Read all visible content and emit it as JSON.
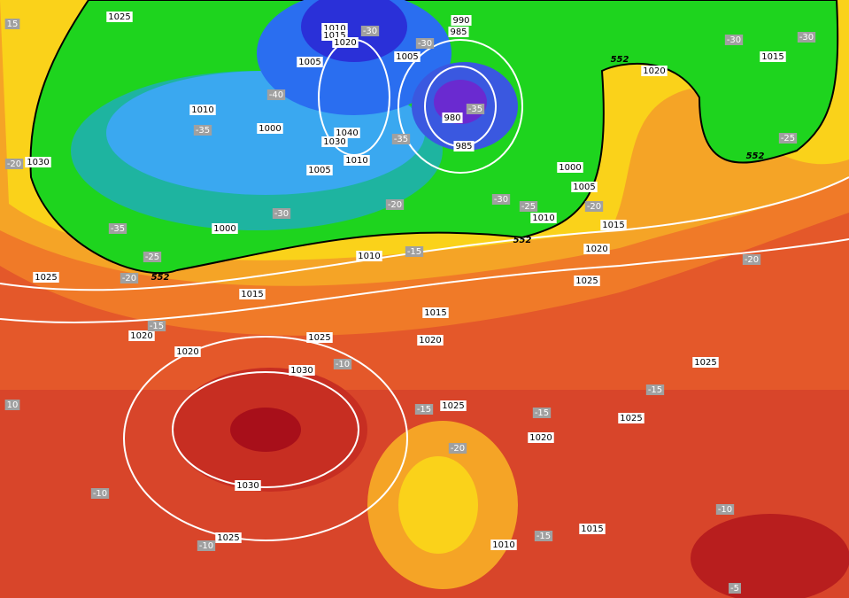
{
  "isobar_labels": [
    "1025",
    "1010",
    "1015",
    "1020",
    "990",
    "985",
    "1005",
    "1005",
    "1010",
    "1000",
    "1040",
    "1030",
    "1010",
    "980",
    "985",
    "1005",
    "1030",
    "1000",
    "1005",
    "1010",
    "1015",
    "1000",
    "1010",
    "1020",
    "1025",
    "1015",
    "1025",
    "1015",
    "1020",
    "1020",
    "1025",
    "1020",
    "1030",
    "1025",
    "1025",
    "1025",
    "1020",
    "1030",
    "1025",
    "1010",
    "1015",
    "1020",
    "1015"
  ],
  "temperature_labels": [
    "-30",
    "-30",
    "15",
    "-30",
    "-30",
    "-40",
    "-35",
    "-35",
    "-35",
    "-20",
    "-30",
    "-20",
    "-30",
    "-25",
    "-20",
    "-35",
    "-25",
    "-20",
    "-15",
    "-20",
    "-15",
    "-10",
    "-15",
    "10",
    "-15",
    "-15",
    "-20",
    "-10",
    "-10",
    "-15",
    "-10",
    "-5",
    "-25"
  ],
  "contour_552_labels": [
    "552",
    "552",
    "552",
    "552"
  ]
}
